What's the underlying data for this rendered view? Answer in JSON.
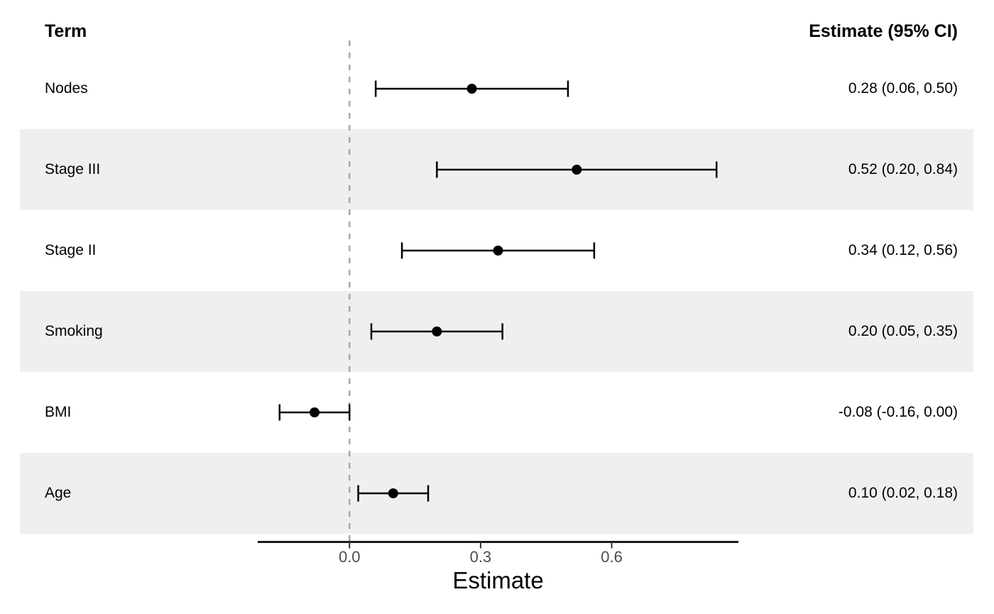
{
  "headers": {
    "term": "Term",
    "estimate": "Estimate (95% CI)"
  },
  "chart_data": {
    "type": "forest",
    "rows": [
      {
        "term": "Nodes",
        "estimate": 0.28,
        "ci_lower": 0.06,
        "ci_upper": 0.5,
        "label": "0.28 (0.06, 0.50)",
        "shaded": false
      },
      {
        "term": "Stage III",
        "estimate": 0.52,
        "ci_lower": 0.2,
        "ci_upper": 0.84,
        "label": "0.52 (0.20, 0.84)",
        "shaded": true
      },
      {
        "term": "Stage II",
        "estimate": 0.34,
        "ci_lower": 0.12,
        "ci_upper": 0.56,
        "label": "0.34 (0.12, 0.56)",
        "shaded": false
      },
      {
        "term": "Smoking",
        "estimate": 0.2,
        "ci_lower": 0.05,
        "ci_upper": 0.35,
        "label": "0.20 (0.05, 0.35)",
        "shaded": true
      },
      {
        "term": "BMI",
        "estimate": -0.08,
        "ci_lower": -0.16,
        "ci_upper": 0.0,
        "label": "-0.08 (-0.16, 0.00)",
        "shaded": false
      },
      {
        "term": "Age",
        "estimate": 0.1,
        "ci_lower": 0.02,
        "ci_upper": 0.18,
        "label": "0.10 (0.02, 0.18)",
        "shaded": true
      }
    ],
    "x_axis": {
      "label": "Estimate",
      "ticks": [
        0.0,
        0.3,
        0.6
      ],
      "tick_labels": [
        "0.0",
        "0.3",
        "0.6"
      ],
      "xlim": [
        -0.21,
        0.89
      ],
      "reference_line": 0
    },
    "legend": "none",
    "grid": "off",
    "colors": {
      "band": "#EFEFEF",
      "reference_line": "#A8A8A8",
      "marker": "#000000",
      "axis_line": "#1a1a1a",
      "tick_text": "#4d4d4d"
    }
  }
}
